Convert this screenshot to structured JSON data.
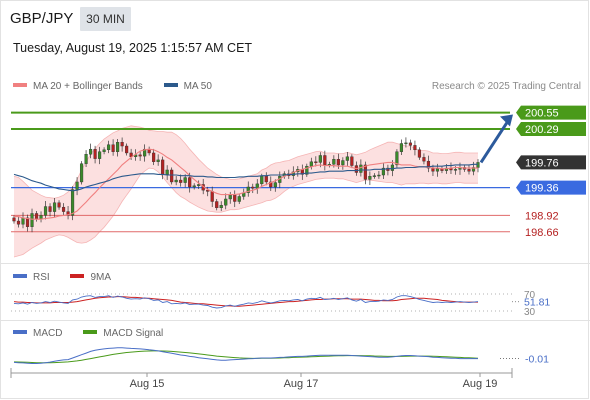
{
  "header": {
    "symbol": "GBP/JPY",
    "interval": "30 MIN",
    "timestamp": "Tuesday, August 19, 2025 1:15:57 AM CET"
  },
  "legend": {
    "bollinger": {
      "label": "MA 20 + Bollinger Bands",
      "color": "#f08080"
    },
    "ma50": {
      "label": "MA 50",
      "color": "#2c5a8c"
    },
    "research": "Research © 2025 Trading Central"
  },
  "rsi_legend": {
    "rsi": {
      "label": "RSI",
      "color": "#4a6fc7"
    },
    "ma": {
      "label": "9MA",
      "color": "#cc2222"
    }
  },
  "macd_legend": {
    "macd": {
      "label": "MACD",
      "color": "#4a6fc7"
    },
    "signal": {
      "label": "MACD Signal",
      "color": "#4a9a1a"
    }
  },
  "colors": {
    "up": "#3a8a2a",
    "down": "#b52222",
    "band_fill": "#fbd5d5",
    "resistance": "#4a9a1a",
    "support": "#3a6ae0",
    "target": "#e06a6a",
    "current": "#333333",
    "forecast_arrow": "#2c5a9c"
  },
  "chart_data": [
    {
      "type": "candlestick",
      "title": "GBP/JPY",
      "ylim": [
        198.45,
        200.75
      ],
      "x_ticks": [
        "Aug 15",
        "Aug 17",
        "Aug 19"
      ],
      "current_price": 199.76,
      "levels": [
        {
          "value": 200.55,
          "label": "200.55",
          "kind": "resistance"
        },
        {
          "value": 200.29,
          "label": "200.29",
          "kind": "resistance"
        },
        {
          "value": 199.76,
          "label": "199.76",
          "kind": "current"
        },
        {
          "value": 199.36,
          "label": "199.36",
          "kind": "pivot"
        },
        {
          "value": 198.92,
          "label": "198.92",
          "kind": "target"
        },
        {
          "value": 198.66,
          "label": "198.66",
          "kind": "target"
        }
      ],
      "forecast": {
        "from": 199.76,
        "to": 200.52
      },
      "close": [
        198.83,
        198.78,
        198.88,
        198.74,
        198.95,
        198.86,
        198.92,
        199.06,
        198.98,
        199.12,
        199.05,
        198.98,
        198.92,
        199.33,
        199.45,
        199.74,
        199.89,
        199.97,
        199.82,
        199.93,
        199.96,
        200.04,
        199.93,
        200.08,
        200.02,
        199.91,
        199.85,
        199.88,
        199.86,
        199.97,
        199.91,
        199.77,
        199.8,
        199.57,
        199.64,
        199.45,
        199.48,
        199.44,
        199.52,
        199.37,
        199.39,
        199.41,
        199.32,
        199.3,
        199.14,
        199.04,
        199.08,
        199.18,
        199.24,
        199.14,
        199.22,
        199.28,
        199.37,
        199.35,
        199.42,
        199.54,
        199.45,
        199.37,
        199.44,
        199.54,
        199.58,
        199.55,
        199.61,
        199.65,
        199.57,
        199.7,
        199.77,
        199.76,
        199.87,
        199.72,
        199.73,
        199.81,
        199.72,
        199.79,
        199.85,
        199.71,
        199.6,
        199.72,
        199.49,
        199.54,
        199.55,
        199.56,
        199.67,
        199.63,
        199.72,
        199.93,
        200.06,
        200.07,
        200.03,
        199.96,
        199.84,
        199.78,
        199.67,
        199.62,
        199.66,
        199.63,
        199.67,
        199.64,
        199.65,
        199.68,
        199.65,
        199.62,
        199.68,
        199.76
      ],
      "ma20": [
        198.9,
        198.9,
        198.88,
        198.87,
        198.86,
        198.86,
        198.86,
        198.87,
        198.88,
        198.89,
        198.91,
        198.92,
        198.93,
        198.95,
        198.99,
        199.06,
        199.13,
        199.21,
        199.28,
        199.36,
        199.43,
        199.5,
        199.57,
        199.64,
        199.72,
        199.78,
        199.84,
        199.89,
        199.94,
        199.96,
        199.97,
        199.96,
        199.93,
        199.89,
        199.84,
        199.8,
        199.74,
        199.68,
        199.62,
        199.55,
        199.49,
        199.43,
        199.38,
        199.33,
        199.3,
        199.27,
        199.25,
        199.25,
        199.25,
        199.25,
        199.26,
        199.28,
        199.3,
        199.32,
        199.34,
        199.38,
        199.41,
        199.44,
        199.47,
        199.5,
        199.54,
        199.57,
        199.6,
        199.63,
        199.65,
        199.67,
        199.69,
        199.71,
        199.72,
        199.71,
        199.71,
        199.71,
        199.7,
        199.7,
        199.7,
        199.68,
        199.66,
        199.68,
        199.7,
        199.72,
        199.73,
        199.74,
        199.75,
        199.76,
        199.76,
        199.74,
        199.72,
        199.72,
        199.72,
        199.7,
        199.69,
        199.69,
        199.68,
        199.67,
        199.67,
        199.66,
        199.66,
        199.67,
        199.68,
        199.68,
        199.67,
        199.67,
        199.67,
        199.67
      ],
      "ma50": [
        199.57,
        199.55,
        199.53,
        199.5,
        199.47,
        199.45,
        199.43,
        199.4,
        199.38,
        199.36,
        199.34,
        199.33,
        199.32,
        199.31,
        199.32,
        199.34,
        199.37,
        199.39,
        199.41,
        199.43,
        199.45,
        199.47,
        199.5,
        199.52,
        199.54,
        199.55,
        199.56,
        199.57,
        199.58,
        199.58,
        199.58,
        199.58,
        199.57,
        199.57,
        199.56,
        199.56,
        199.56,
        199.55,
        199.55,
        199.55,
        199.54,
        199.54,
        199.54,
        199.53,
        199.53,
        199.52,
        199.52,
        199.52,
        199.52,
        199.52,
        199.53,
        199.53,
        199.54,
        199.54,
        199.54,
        199.55,
        199.55,
        199.56,
        199.56,
        199.56,
        199.56,
        199.57,
        199.57,
        199.58,
        199.58,
        199.59,
        199.59,
        199.6,
        199.61,
        199.61,
        199.62,
        199.62,
        199.62,
        199.62,
        199.63,
        199.63,
        199.63,
        199.64,
        199.64,
        199.64,
        199.65,
        199.65,
        199.65,
        199.66,
        199.66,
        199.67,
        199.67,
        199.68,
        199.68,
        199.68,
        199.69,
        199.69,
        199.69,
        199.7,
        199.7,
        199.7,
        199.71,
        199.71,
        199.72,
        199.72,
        199.72,
        199.72,
        199.73,
        199.73
      ],
      "band_width": [
        0.64,
        0.62,
        0.58,
        0.52,
        0.46,
        0.42,
        0.38,
        0.34,
        0.32,
        0.3,
        0.3,
        0.32,
        0.36,
        0.42,
        0.5,
        0.58,
        0.64,
        0.68,
        0.7,
        0.7,
        0.7,
        0.68,
        0.66,
        0.62,
        0.58,
        0.54,
        0.5,
        0.44,
        0.38,
        0.34,
        0.3,
        0.3,
        0.32,
        0.36,
        0.4,
        0.44,
        0.46,
        0.46,
        0.44,
        0.42,
        0.4,
        0.38,
        0.36,
        0.34,
        0.32,
        0.3,
        0.28,
        0.26,
        0.24,
        0.24,
        0.24,
        0.24,
        0.24,
        0.24,
        0.24,
        0.26,
        0.26,
        0.28,
        0.28,
        0.26,
        0.24,
        0.22,
        0.22,
        0.22,
        0.22,
        0.22,
        0.22,
        0.22,
        0.22,
        0.2,
        0.2,
        0.2,
        0.2,
        0.2,
        0.22,
        0.22,
        0.22,
        0.22,
        0.22,
        0.24,
        0.26,
        0.28,
        0.3,
        0.32,
        0.32,
        0.32,
        0.32,
        0.3,
        0.3,
        0.28,
        0.26,
        0.26,
        0.26,
        0.24,
        0.24,
        0.24,
        0.24,
        0.24,
        0.24,
        0.24,
        0.24,
        0.24,
        0.24,
        0.24
      ]
    },
    {
      "type": "line",
      "title": "RSI",
      "ylim": [
        30,
        70
      ],
      "levels": [
        {
          "value": 70,
          "label": "70"
        },
        {
          "value": 30,
          "label": "30"
        }
      ],
      "current": {
        "value": 51.81,
        "label": "51.81"
      },
      "series": [
        {
          "name": "RSI",
          "values": [
            48,
            47,
            49,
            46,
            50,
            48,
            49,
            52,
            50,
            53,
            51,
            49,
            48,
            56,
            58,
            63,
            65,
            66,
            62,
            64,
            64,
            66,
            62,
            65,
            63,
            60,
            58,
            59,
            58,
            61,
            59,
            55,
            56,
            50,
            52,
            47,
            48,
            47,
            49,
            45,
            46,
            46,
            44,
            43,
            39,
            37,
            38,
            42,
            44,
            41,
            44,
            46,
            49,
            48,
            50,
            54,
            51,
            49,
            51,
            54,
            55,
            54,
            56,
            57,
            54,
            58,
            60,
            59,
            62,
            57,
            58,
            60,
            57,
            59,
            61,
            56,
            53,
            57,
            50,
            52,
            52,
            53,
            56,
            55,
            57,
            63,
            66,
            66,
            64,
            61,
            57,
            55,
            52,
            50,
            51,
            50,
            51,
            50,
            51,
            52,
            51,
            50,
            51,
            52
          ]
        },
        {
          "name": "9MA",
          "values": [
            52,
            51,
            51,
            50,
            50,
            49,
            49,
            49,
            49,
            50,
            50,
            50,
            50,
            51,
            52,
            54,
            56,
            58,
            60,
            61,
            62,
            63,
            63,
            64,
            64,
            63,
            62,
            62,
            61,
            60,
            60,
            59,
            58,
            57,
            56,
            55,
            53,
            51,
            50,
            49,
            48,
            47,
            47,
            46,
            45,
            44,
            43,
            42,
            42,
            41,
            41,
            42,
            43,
            44,
            45,
            46,
            47,
            48,
            49,
            50,
            51,
            52,
            52,
            53,
            54,
            55,
            56,
            57,
            57,
            58,
            58,
            59,
            59,
            59,
            59,
            58,
            58,
            58,
            57,
            56,
            55,
            55,
            54,
            54,
            54,
            55,
            57,
            58,
            59,
            60,
            60,
            60,
            59,
            58,
            57,
            55,
            54,
            53,
            52,
            51,
            51,
            51,
            51,
            51
          ]
        }
      ]
    },
    {
      "type": "line",
      "title": "MACD",
      "current": {
        "value": -0.01,
        "label": "-0.01"
      },
      "series": [
        {
          "name": "MACD",
          "values": [
            -0.08,
            -0.085,
            -0.09,
            -0.095,
            -0.1,
            -0.1,
            -0.095,
            -0.085,
            -0.075,
            -0.06,
            -0.045,
            -0.035,
            -0.03,
            0.0,
            0.03,
            0.06,
            0.09,
            0.12,
            0.14,
            0.155,
            0.165,
            0.175,
            0.18,
            0.185,
            0.185,
            0.18,
            0.175,
            0.17,
            0.165,
            0.16,
            0.15,
            0.14,
            0.13,
            0.115,
            0.1,
            0.085,
            0.07,
            0.055,
            0.045,
            0.03,
            0.02,
            0.005,
            -0.005,
            -0.015,
            -0.025,
            -0.035,
            -0.04,
            -0.04,
            -0.035,
            -0.03,
            -0.025,
            -0.02,
            -0.015,
            -0.01,
            -0.005,
            0.0,
            0.0,
            0.0,
            0.005,
            0.01,
            0.015,
            0.02,
            0.025,
            0.03,
            0.03,
            0.035,
            0.04,
            0.045,
            0.05,
            0.05,
            0.05,
            0.05,
            0.05,
            0.05,
            0.05,
            0.045,
            0.04,
            0.035,
            0.03,
            0.025,
            0.02,
            0.015,
            0.015,
            0.015,
            0.02,
            0.03,
            0.04,
            0.045,
            0.045,
            0.04,
            0.035,
            0.03,
            0.025,
            0.015,
            0.01,
            0.005,
            0.0,
            -0.005,
            -0.005,
            -0.01,
            -0.01,
            -0.01,
            -0.01,
            -0.01
          ]
        },
        {
          "name": "MACD Signal",
          "values": [
            -0.07,
            -0.072,
            -0.075,
            -0.078,
            -0.082,
            -0.085,
            -0.087,
            -0.088,
            -0.087,
            -0.084,
            -0.08,
            -0.075,
            -0.07,
            -0.062,
            -0.052,
            -0.04,
            -0.025,
            -0.01,
            0.005,
            0.02,
            0.035,
            0.05,
            0.065,
            0.078,
            0.09,
            0.1,
            0.108,
            0.115,
            0.12,
            0.125,
            0.128,
            0.13,
            0.13,
            0.128,
            0.125,
            0.12,
            0.114,
            0.107,
            0.1,
            0.092,
            0.083,
            0.074,
            0.065,
            0.055,
            0.045,
            0.035,
            0.027,
            0.02,
            0.013,
            0.007,
            0.002,
            -0.002,
            -0.005,
            -0.007,
            -0.007,
            -0.006,
            -0.005,
            -0.004,
            -0.002,
            0.0,
            0.003,
            0.006,
            0.01,
            0.013,
            0.016,
            0.019,
            0.022,
            0.025,
            0.029,
            0.032,
            0.035,
            0.038,
            0.04,
            0.042,
            0.044,
            0.044,
            0.044,
            0.043,
            0.042,
            0.04,
            0.037,
            0.034,
            0.032,
            0.03,
            0.029,
            0.029,
            0.03,
            0.032,
            0.034,
            0.035,
            0.035,
            0.035,
            0.034,
            0.032,
            0.029,
            0.026,
            0.022,
            0.018,
            0.014,
            0.01,
            0.006,
            0.003,
            0.0,
            -0.003
          ]
        }
      ]
    }
  ]
}
